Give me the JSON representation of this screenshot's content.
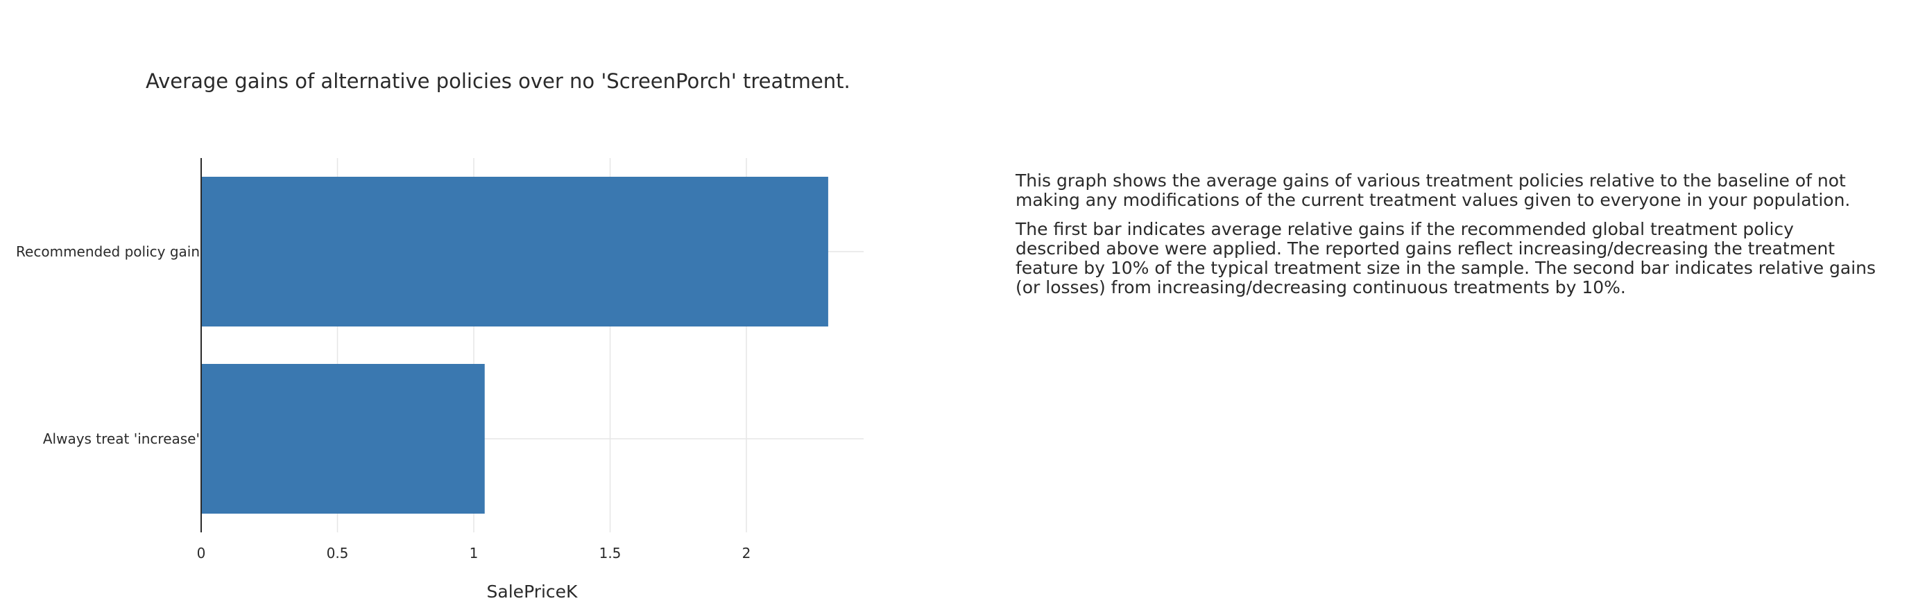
{
  "chart_data": {
    "type": "bar",
    "orientation": "horizontal",
    "title": "Average gains of alternative policies over no 'ScreenPorch' treatment.",
    "xlabel": "SalePriceK",
    "ylabel": "",
    "categories": [
      "Recommended policy gain",
      "Always treat 'increase'"
    ],
    "values": [
      2.3,
      1.04
    ],
    "xlim": [
      0,
      2.43
    ],
    "xticks": [
      0,
      0.5,
      1,
      1.5,
      2
    ],
    "xtick_labels": [
      "0",
      "0.5",
      "1",
      "1.5",
      "2"
    ],
    "grid": true,
    "bar_color": "#3a78b0"
  },
  "description": {
    "paragraphs": [
      "This graph shows the average gains of various treatment policies relative to the baseline of not making any modifications of the current treatment values given to everyone in your population.",
      "The first bar indicates average relative gains if the recommended global treatment policy described above were applied. The reported gains reflect increasing/decreasing the treatment feature by 10% of the typical treatment size in the sample. The second bar indicates relative gains (or losses) from increasing/decreasing continuous treatments by 10%."
    ]
  }
}
